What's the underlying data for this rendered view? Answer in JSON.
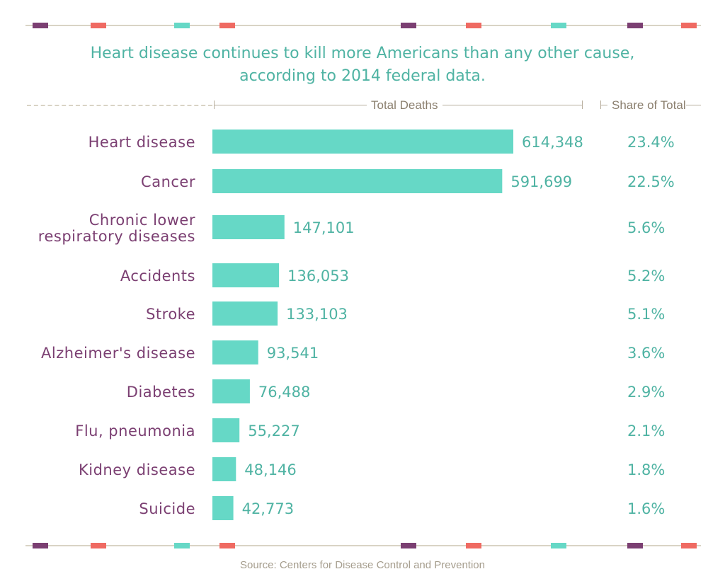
{
  "title_line1": "Heart disease continues to kill more Americans than any other cause,",
  "title_line2": "according to 2014 federal data.",
  "header": {
    "total_deaths": "Total Deaths",
    "share_of_total": "Share of Total"
  },
  "source": "Source: Centers for Disease Control and Prevention",
  "colors": {
    "bar": "#66d8c6",
    "category": "#7b3f72",
    "value": "#4fb3a3",
    "accent_purple": "#7b3f72",
    "accent_coral": "#ef6a62",
    "accent_teal": "#66d8c6"
  },
  "chart_data": {
    "type": "bar",
    "orientation": "horizontal",
    "title": "Heart disease continues to kill more Americans than any other cause, according to 2014 federal data.",
    "categories": [
      "Heart disease",
      "Cancer",
      "Chronic lower respiratory diseases",
      "Accidents",
      "Stroke",
      "Alzheimer's disease",
      "Diabetes",
      "Flu, pneumonia",
      "Kidney disease",
      "Suicide"
    ],
    "values": [
      614348,
      591699,
      147101,
      136053,
      133103,
      93541,
      76488,
      55227,
      48146,
      42773
    ],
    "value_labels": [
      "614,348",
      "591,699",
      "147,101",
      "136,053",
      "133,103",
      "93,541",
      "76,488",
      "55,227",
      "48,146",
      "42,773"
    ],
    "share_labels": [
      "23.4%",
      "22.5%",
      "5.6%",
      "5.2%",
      "5.1%",
      "3.6%",
      "2.9%",
      "2.1%",
      "1.8%",
      "1.6%"
    ],
    "xlabel": "Total Deaths",
    "grid": false
  }
}
